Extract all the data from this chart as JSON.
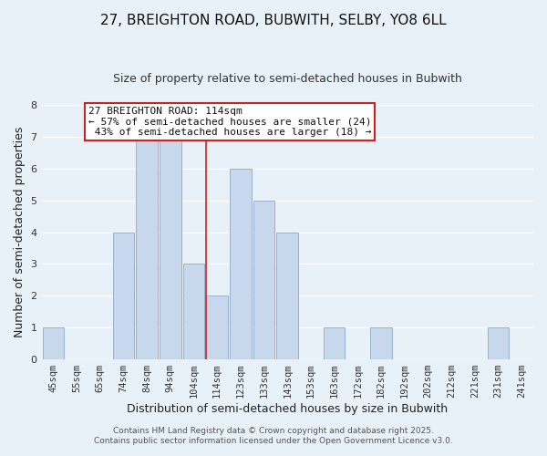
{
  "title": "27, BREIGHTON ROAD, BUBWITH, SELBY, YO8 6LL",
  "subtitle": "Size of property relative to semi-detached houses in Bubwith",
  "xlabel": "Distribution of semi-detached houses by size in Bubwith",
  "ylabel": "Number of semi-detached properties",
  "categories": [
    "45sqm",
    "55sqm",
    "65sqm",
    "74sqm",
    "84sqm",
    "94sqm",
    "104sqm",
    "114sqm",
    "123sqm",
    "133sqm",
    "143sqm",
    "153sqm",
    "163sqm",
    "172sqm",
    "182sqm",
    "192sqm",
    "202sqm",
    "212sqm",
    "221sqm",
    "231sqm",
    "241sqm"
  ],
  "values": [
    1,
    0,
    0,
    4,
    7,
    7,
    3,
    2,
    6,
    5,
    4,
    0,
    1,
    0,
    1,
    0,
    0,
    0,
    0,
    1,
    0
  ],
  "bar_color": "#c8d8ec",
  "bar_edge_color": "#9ab0cc",
  "highlight_index": 7,
  "highlight_line_color": "#cc2222",
  "ylim": [
    0,
    8
  ],
  "yticks": [
    0,
    1,
    2,
    3,
    4,
    5,
    6,
    7,
    8
  ],
  "annotation_title": "27 BREIGHTON ROAD: 114sqm",
  "annotation_line1": "← 57% of semi-detached houses are smaller (24)",
  "annotation_line2": " 43% of semi-detached houses are larger (18) →",
  "annotation_box_facecolor": "#ffffff",
  "annotation_box_edgecolor": "#cc2222",
  "background_color": "#e8f0f8",
  "grid_color": "#ffffff",
  "footer1": "Contains HM Land Registry data © Crown copyright and database right 2025.",
  "footer2": "Contains public sector information licensed under the Open Government Licence v3.0.",
  "title_fontsize": 11,
  "subtitle_fontsize": 9,
  "axis_label_fontsize": 9,
  "tick_fontsize": 7.5,
  "annotation_fontsize": 8,
  "footer_fontsize": 6.5
}
